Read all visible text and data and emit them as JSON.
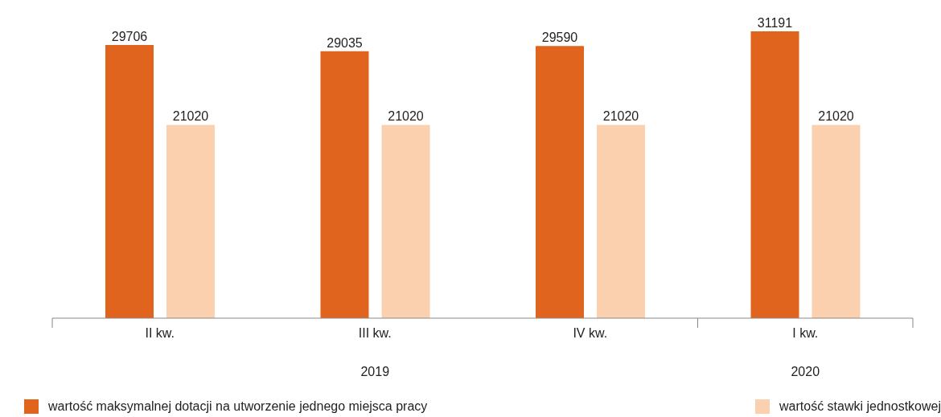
{
  "chart_data": {
    "type": "bar",
    "categories": [
      "II kw.",
      "III kw.",
      "IV kw.",
      "I kw."
    ],
    "series": [
      {
        "name": "wartość maksymalnej dotacji na utworzenie jednego miejsca pracy",
        "color": "#e0641e",
        "values": [
          29706,
          29035,
          29590,
          31191
        ]
      },
      {
        "name": "wartość stawki jednostkowej",
        "color": "#fbd0ae",
        "values": [
          21020,
          21020,
          21020,
          21020
        ]
      }
    ],
    "data_labels": true,
    "grid": false,
    "legend": "bottom",
    "annotations": [
      "2019",
      "2020"
    ]
  }
}
